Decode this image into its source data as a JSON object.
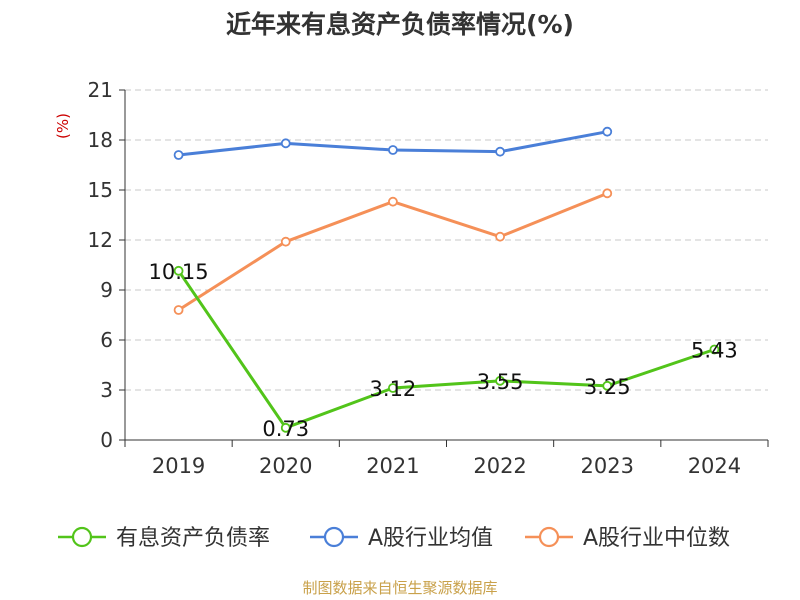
{
  "chart_data": {
    "type": "line",
    "title": "近年来有息资产负债率情况(%)",
    "ylabel": "(%)",
    "xlabel": "",
    "categories": [
      "2019",
      "2020",
      "2021",
      "2022",
      "2023",
      "2024"
    ],
    "ylim": [
      0,
      21
    ],
    "yticks": [
      0,
      3,
      6,
      9,
      12,
      15,
      18,
      21
    ],
    "grid": true,
    "legend_position": "bottom",
    "series": [
      {
        "name": "有息资产负债率",
        "color": "#52c41a",
        "values": [
          10.15,
          0.73,
          3.12,
          3.55,
          3.25,
          5.43
        ],
        "labels": [
          "10.15",
          "0.73",
          "3.12",
          "3.55",
          "3.25",
          "5.43"
        ],
        "show_labels": true
      },
      {
        "name": "A股行业均值",
        "color": "#4a7fd8",
        "values": [
          17.1,
          17.8,
          17.4,
          17.3,
          18.5,
          null
        ],
        "show_labels": false
      },
      {
        "name": "A股行业中位数",
        "color": "#f59058",
        "values": [
          7.8,
          11.9,
          14.3,
          12.2,
          14.8,
          null
        ],
        "show_labels": false
      }
    ]
  },
  "footer": {
    "source": "制图数据来自恒生聚源数据库"
  }
}
